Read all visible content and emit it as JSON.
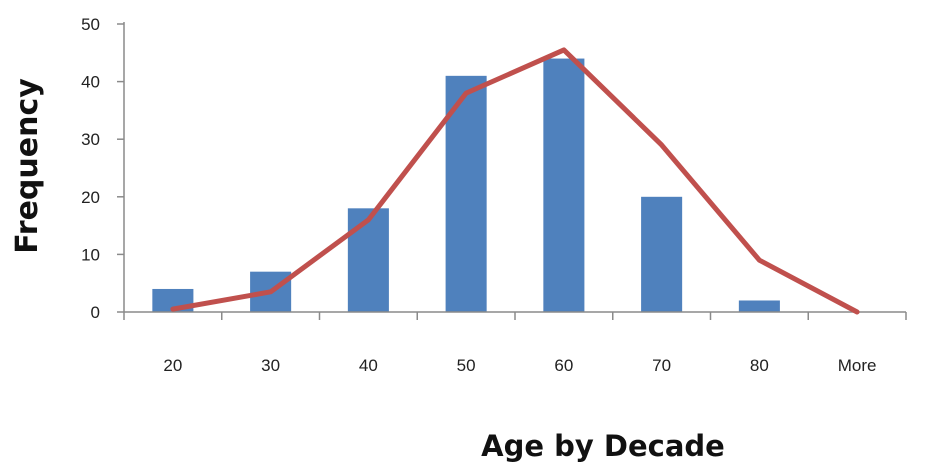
{
  "chart_data": {
    "type": "bar",
    "categories": [
      "20",
      "30",
      "40",
      "50",
      "60",
      "70",
      "80",
      "More"
    ],
    "series": [
      {
        "type": "bar",
        "values": [
          4,
          7,
          18,
          41,
          44,
          20,
          2,
          0
        ],
        "color": "#4F81BD"
      },
      {
        "type": "line",
        "values": [
          0.5,
          3.5,
          16,
          38,
          45.5,
          29,
          9,
          0
        ],
        "color": "#C0504D"
      }
    ],
    "xlabel": "Age by Decade",
    "ylabel": "Frequency",
    "ylim": [
      0,
      50
    ],
    "yticks": [
      0,
      10,
      20,
      30,
      40,
      50
    ],
    "grid": false,
    "legend": "none"
  }
}
